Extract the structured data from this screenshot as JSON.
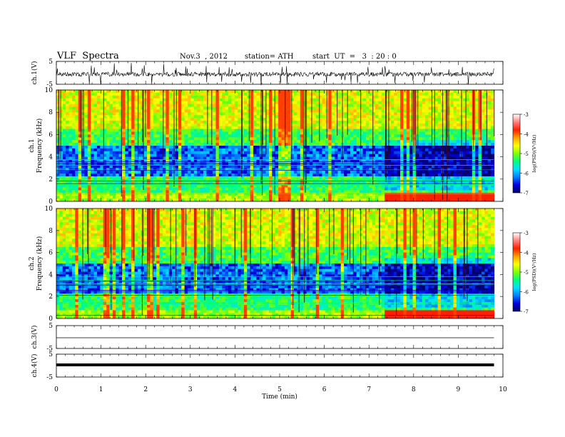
{
  "header": {
    "title": "VLF  Spectra",
    "date": "Nov.3  , 2012",
    "station": "station= ATH",
    "start": "start  UT  =   3  : 20 : 0"
  },
  "chart_data": [
    {
      "type": "line",
      "panel": "ch1-waveform",
      "ylabel": "ch.1(V)",
      "yticks": [
        "5",
        "-5"
      ],
      "ylim": [
        -5,
        5
      ],
      "xlim": [
        0,
        10
      ],
      "data_extent_min": 9.8,
      "description_level": 0.3
    },
    {
      "type": "heatmap",
      "panel": "ch1-spectrogram",
      "ylabel": "Frequency  (kHz)",
      "channel_label": "ch.1",
      "yticks": [
        "0",
        "2",
        "4",
        "6",
        "8",
        "10"
      ],
      "ylim": [
        0,
        10
      ],
      "xlim": [
        0,
        10
      ],
      "data_extent_min": 9.8,
      "colorbar": {
        "label": "log(PSD)(V²/Hz)",
        "ticks": [
          "-3",
          "-4",
          "-5",
          "-6",
          "-7"
        ],
        "range": [
          -7,
          -3
        ],
        "colors": [
          "#000066",
          "#0000dd",
          "#0080ff",
          "#00e0ff",
          "#00ff80",
          "#80ff00",
          "#ffff00",
          "#ffa000",
          "#ff2000",
          "#ff8080",
          "#ffffff"
        ]
      }
    },
    {
      "type": "heatmap",
      "panel": "ch2-spectrogram",
      "ylabel": "Frequency  (kHz)",
      "channel_label": "ch.2",
      "yticks": [
        "0",
        "2",
        "4",
        "6",
        "8",
        "10"
      ],
      "ylim": [
        0,
        10
      ],
      "xlim": [
        0,
        10
      ],
      "data_extent_min": 9.8,
      "colorbar": {
        "label": "log(PSD)(V²/Hz)",
        "ticks": [
          "-3",
          "-4",
          "-5",
          "-6",
          "-7"
        ],
        "range": [
          -7,
          -3
        ]
      }
    },
    {
      "type": "line",
      "panel": "ch3-waveform",
      "ylabel": "ch.3(V)",
      "yticks": [
        "5",
        "-5"
      ],
      "ylim": [
        -5,
        5
      ],
      "xlim": [
        0,
        10
      ],
      "level": 0.0
    },
    {
      "type": "line",
      "panel": "ch4-waveform",
      "ylabel": "ch.4(V)",
      "yticks": [
        "5",
        "-5"
      ],
      "ylim": [
        -5,
        5
      ],
      "xlim": [
        0,
        10
      ],
      "level": 0.0
    }
  ],
  "xaxis": {
    "label": "Time  (min)",
    "ticks": [
      "0",
      "1",
      "2",
      "3",
      "4",
      "5",
      "6",
      "7",
      "8",
      "9",
      "10"
    ]
  }
}
